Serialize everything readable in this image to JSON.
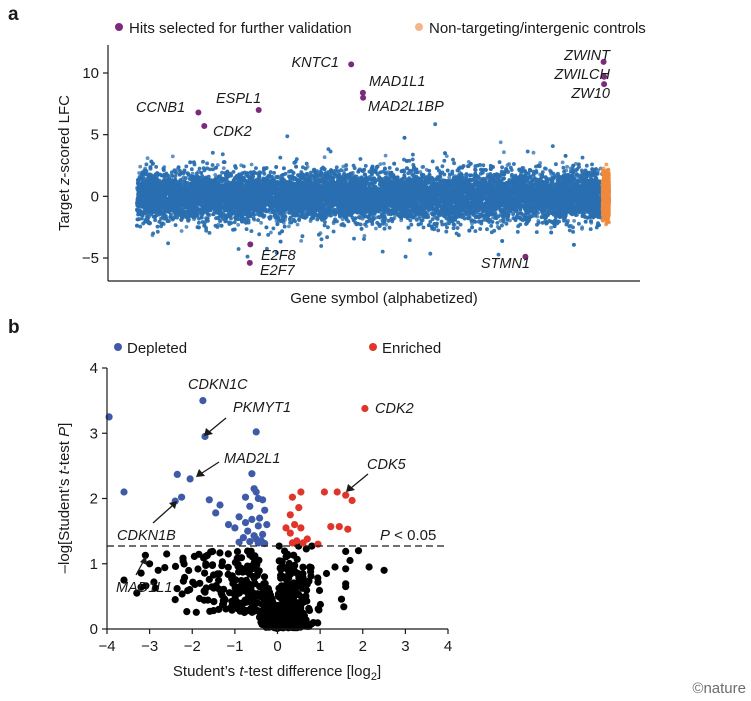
{
  "credit": "©nature",
  "chart_data": [
    {
      "panel": "a",
      "type": "scatter",
      "xlabel": "Gene symbol (alphabetized)",
      "ylabel_parts": [
        "Target ",
        "z",
        "-scored LFC"
      ],
      "ylim": [
        -6.2,
        12.2
      ],
      "yticks": [
        -5,
        0,
        5,
        10
      ],
      "xrange_genes": [
        0,
        19200
      ],
      "grid": false,
      "legend": {
        "placement": "top",
        "entries": [
          {
            "label": "Hits selected for further validation",
            "color": "#7b2a7e"
          },
          {
            "label": "Non-targeting/intergenic controls",
            "color": "#f5b589"
          }
        ]
      },
      "background_series": {
        "name": "genes",
        "color": "#2a6fb0",
        "count": 19000,
        "y_sd": 0.95
      },
      "control_series": {
        "color": "#f08a3c",
        "x_index": 18950,
        "count": 1100,
        "y_sd": 0.85
      },
      "hits": [
        {
          "gene": "CCNB1",
          "x": 2480,
          "y": 6.8
        },
        {
          "gene": "CDK2",
          "x": 2720,
          "y": 5.7
        },
        {
          "gene": "ESPL1",
          "x": 4920,
          "y": 7.0
        },
        {
          "gene": "E2F8",
          "x": 4580,
          "y": -3.9
        },
        {
          "gene": "E2F7",
          "x": 4560,
          "y": -5.4
        },
        {
          "gene": "KNTC1",
          "x": 8660,
          "y": 10.7
        },
        {
          "gene": "MAD1L1",
          "x": 9130,
          "y": 8.4
        },
        {
          "gene": "MAD2L1BP",
          "x": 9140,
          "y": 8.0
        },
        {
          "gene": "STMN1",
          "x": 15700,
          "y": -4.9
        },
        {
          "gene": "ZWINT",
          "x": 18860,
          "y": 10.9
        },
        {
          "gene": "ZWILCH",
          "x": 18880,
          "y": 9.7
        },
        {
          "gene": "ZW10",
          "x": 18880,
          "y": 9.1
        }
      ]
    },
    {
      "panel": "b",
      "type": "scatter",
      "xlabel_parts": [
        "Student’s ",
        "t",
        "-test difference [log",
        "2",
        "]"
      ],
      "ylabel_parts": [
        "–log[Student’s ",
        "t",
        "-test ",
        "P",
        "]"
      ],
      "xlim": [
        -4,
        4
      ],
      "ylim": [
        0,
        4
      ],
      "xticks": [
        -4,
        -3,
        -2,
        -1,
        0,
        1,
        2,
        3,
        4
      ],
      "yticks": [
        0,
        1,
        2,
        3,
        4
      ],
      "grid": false,
      "threshold": {
        "y": 1.301,
        "label_parts": [
          "P",
          " < 0.05"
        ]
      },
      "legend": {
        "placement": "top",
        "entries": [
          {
            "label": "Depleted",
            "color": "#3f5aa8"
          },
          {
            "label": "Enriched",
            "color": "#e0352b"
          }
        ]
      },
      "series": [
        {
          "name": "Depleted",
          "color": "#3f5aa8",
          "points": [
            [
              -3.95,
              3.25
            ],
            [
              -3.6,
              2.1
            ],
            [
              -1.75,
              3.5
            ],
            [
              -1.7,
              2.95
            ],
            [
              -0.5,
              3.02
            ],
            [
              -2.35,
              2.37
            ],
            [
              -2.05,
              2.3
            ],
            [
              -2.25,
              2.02
            ],
            [
              -2.4,
              1.96
            ],
            [
              -1.6,
              1.98
            ],
            [
              -1.35,
              1.9
            ],
            [
              -0.75,
              2.02
            ],
            [
              -0.65,
              1.88
            ],
            [
              -0.5,
              2.1
            ],
            [
              -0.45,
              2.0
            ],
            [
              -0.35,
              1.98
            ],
            [
              -0.6,
              2.38
            ],
            [
              -0.55,
              2.15
            ],
            [
              -1.45,
              1.78
            ],
            [
              -1.15,
              1.6
            ],
            [
              -1.0,
              1.55
            ],
            [
              -0.9,
              1.72
            ],
            [
              -0.75,
              1.63
            ],
            [
              -0.6,
              1.68
            ],
            [
              -0.45,
              1.58
            ],
            [
              -0.3,
              1.82
            ],
            [
              -0.7,
              1.5
            ],
            [
              -0.55,
              1.43
            ],
            [
              -0.8,
              1.4
            ],
            [
              -0.65,
              1.34
            ],
            [
              -0.45,
              1.32
            ],
            [
              -0.35,
              1.45
            ],
            [
              -0.25,
              1.6
            ],
            [
              -0.5,
              1.38
            ],
            [
              -0.38,
              1.35
            ],
            [
              -0.9,
              1.33
            ],
            [
              -0.3,
              1.31
            ],
            [
              -0.42,
              1.7
            ]
          ]
        },
        {
          "name": "Enriched",
          "color": "#e0352b",
          "points": [
            [
              2.05,
              3.38
            ],
            [
              1.4,
              2.1
            ],
            [
              1.6,
              2.05
            ],
            [
              1.75,
              1.97
            ],
            [
              1.1,
              2.1
            ],
            [
              0.35,
              2.02
            ],
            [
              0.55,
              2.1
            ],
            [
              0.5,
              1.86
            ],
            [
              0.3,
              1.75
            ],
            [
              0.4,
              1.6
            ],
            [
              0.55,
              1.55
            ],
            [
              0.7,
              1.38
            ],
            [
              0.95,
              1.3
            ],
            [
              0.3,
              1.47
            ],
            [
              0.45,
              1.35
            ],
            [
              1.25,
              1.57
            ],
            [
              1.45,
              1.57
            ],
            [
              1.65,
              1.53
            ],
            [
              0.35,
              1.32
            ],
            [
              0.2,
              1.55
            ],
            [
              0.6,
              1.32
            ]
          ]
        },
        {
          "name": "not significant",
          "color": "#000000",
          "count": 560,
          "points_fixed": [
            [
              -3.1,
              1.13
            ],
            [
              -3.6,
              0.75
            ],
            [
              -3.3,
              0.55
            ],
            [
              -2.9,
              0.72
            ],
            [
              -3.0,
              1.0
            ],
            [
              -2.6,
              1.15
            ],
            [
              -2.8,
              0.9
            ],
            [
              -2.4,
              0.45
            ],
            [
              2.15,
              0.95
            ],
            [
              2.5,
              0.9
            ],
            [
              1.7,
              1.05
            ],
            [
              1.35,
              0.95
            ],
            [
              1.6,
              0.65
            ],
            [
              1.15,
              0.85
            ],
            [
              1.9,
              1.2
            ]
          ]
        }
      ],
      "labels": [
        {
          "gene": "CDKN1C"
        },
        {
          "gene": "PKMYT1"
        },
        {
          "gene": "MAD2L1"
        },
        {
          "gene": "CDKN1B"
        },
        {
          "gene": "MAD1L1"
        },
        {
          "gene": "CDK2"
        },
        {
          "gene": "CDK5"
        }
      ]
    }
  ]
}
